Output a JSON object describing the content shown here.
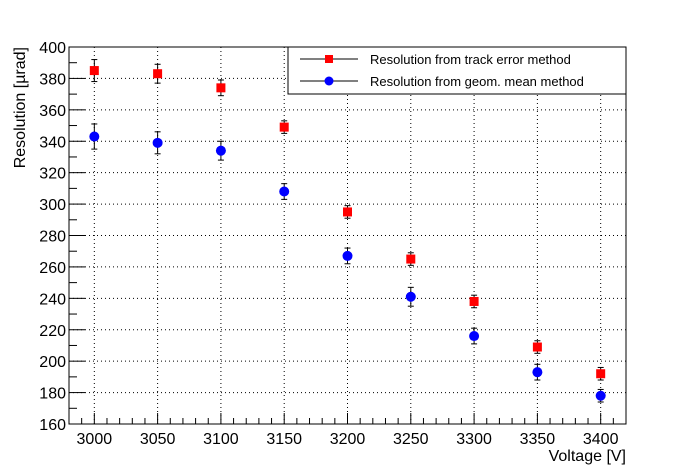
{
  "chart_data": {
    "type": "scatter",
    "title": "",
    "xlabel": "Voltage [V]",
    "ylabel": "Resolution [µrad]",
    "xlim": [
      2980,
      3420
    ],
    "ylim": [
      160,
      400
    ],
    "x_ticks": [
      3000,
      3050,
      3100,
      3150,
      3200,
      3250,
      3300,
      3350,
      3400
    ],
    "y_ticks": [
      160,
      180,
      200,
      220,
      240,
      260,
      280,
      300,
      320,
      340,
      360,
      380,
      400
    ],
    "grid": true,
    "legend_position": "top-right",
    "series": [
      {
        "name": "Resolution from track error method",
        "color": "#ff0000",
        "marker": "square",
        "x": [
          3000,
          3050,
          3100,
          3150,
          3200,
          3250,
          3300,
          3350,
          3400
        ],
        "y": [
          385,
          383,
          374,
          349,
          295,
          265,
          238,
          209,
          192
        ],
        "err": [
          7,
          6,
          5,
          4,
          4,
          4,
          4,
          4,
          4
        ]
      },
      {
        "name": "Resolution from geom. mean method",
        "color": "#0000ff",
        "marker": "circle",
        "x": [
          3000,
          3050,
          3100,
          3150,
          3200,
          3250,
          3300,
          3350,
          3400
        ],
        "y": [
          343,
          339,
          334,
          308,
          267,
          241,
          216,
          193,
          178
        ],
        "err": [
          8,
          7,
          6,
          5,
          5,
          6,
          5,
          5,
          4
        ]
      }
    ]
  }
}
